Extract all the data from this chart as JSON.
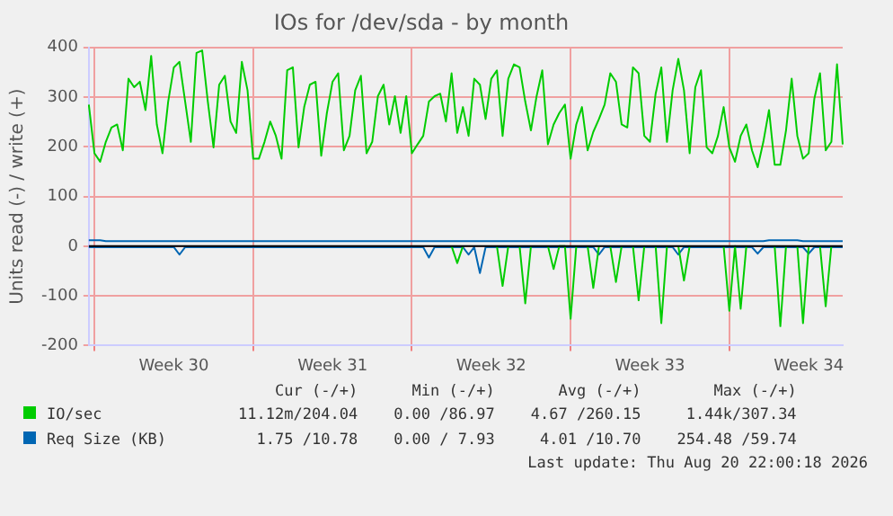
{
  "chart_data": {
    "type": "line",
    "title": "IOs for /dev/sda - by month",
    "ylabel": "Units read (-) / write (+)",
    "categories": [
      null,
      null,
      null,
      null,
      null,
      null,
      null,
      null,
      null,
      null,
      null,
      null,
      null,
      null,
      null,
      "Week 30",
      null,
      null,
      null,
      null,
      null,
      null,
      null,
      null,
      null,
      null,
      null,
      null,
      null,
      null,
      null,
      null,
      null,
      null,
      null,
      null,
      null,
      null,
      null,
      null,
      null,
      null,
      null,
      "Week 31",
      null,
      null,
      null,
      null,
      null,
      null,
      null,
      null,
      null,
      null,
      null,
      null,
      null,
      null,
      null,
      null,
      null,
      null,
      null,
      null,
      null,
      null,
      null,
      null,
      null,
      null,
      null,
      "Week 32",
      null,
      null,
      null,
      null,
      null,
      null,
      null,
      null,
      null,
      null,
      null,
      null,
      null,
      null,
      null,
      null,
      null,
      null,
      null,
      null,
      null,
      null,
      null,
      null,
      null,
      null,
      null,
      "Week 33",
      null,
      null,
      null,
      null,
      null,
      null,
      null,
      null,
      null,
      null,
      null,
      null,
      null,
      null,
      null,
      null,
      null,
      null,
      null,
      null,
      null,
      null,
      null,
      null,
      null,
      null,
      null,
      "Week 34",
      null,
      null,
      null,
      null,
      null,
      null
    ],
    "ylim": [
      -200,
      400
    ],
    "yticks": [
      -200,
      -100,
      0,
      100,
      200,
      300,
      400
    ],
    "grid": true,
    "legend": "bottom",
    "ref_lines": [
      {
        "axis": "y",
        "value": 0,
        "color": "#000000"
      }
    ],
    "series": [
      {
        "name": "IO/sec",
        "color": "#00cc00",
        "values": [
          285,
          187,
          170,
          210,
          239,
          245,
          193,
          337,
          320,
          331,
          274,
          383,
          245,
          187,
          291,
          360,
          371,
          291,
          210,
          389,
          394,
          291,
          199,
          325,
          343,
          251,
          228,
          371,
          314,
          176,
          176,
          210,
          251,
          222,
          176,
          354,
          360,
          199,
          280,
          325,
          331,
          182,
          268,
          331,
          348,
          193,
          222,
          314,
          343,
          187,
          210,
          302,
          325,
          245,
          302,
          228,
          302,
          187,
          205,
          222,
          291,
          302,
          307,
          251,
          348,
          228,
          280,
          222,
          337,
          325,
          256,
          337,
          354,
          222,
          337,
          366,
          360,
          291,
          233,
          302,
          354,
          205,
          245,
          268,
          285,
          176,
          245,
          280,
          193,
          230,
          256,
          285,
          348,
          331,
          245,
          239,
          360,
          348,
          222,
          210,
          307,
          360,
          210,
          314,
          377,
          314,
          187,
          320,
          354,
          199,
          187,
          222,
          280,
          199,
          170,
          222,
          245,
          193,
          159,
          210,
          274,
          164,
          164,
          233,
          337,
          222,
          176,
          187,
          297,
          348,
          193,
          210,
          366,
          205
        ]
      },
      {
        "color": "#00cc00",
        "values": [
          null,
          null,
          null,
          null,
          null,
          null,
          null,
          null,
          null,
          null,
          null,
          null,
          null,
          null,
          null,
          null,
          null,
          null,
          null,
          null,
          null,
          null,
          null,
          null,
          null,
          null,
          null,
          null,
          null,
          null,
          null,
          null,
          null,
          null,
          null,
          null,
          null,
          null,
          null,
          null,
          null,
          null,
          null,
          null,
          null,
          null,
          null,
          null,
          null,
          null,
          null,
          null,
          null,
          null,
          null,
          null,
          null,
          null,
          null,
          null,
          null,
          null,
          null,
          null,
          0,
          -34,
          0,
          null,
          null,
          null,
          null,
          null,
          0,
          -80,
          0,
          null,
          0,
          -115,
          0,
          null,
          null,
          0,
          -46,
          0,
          0,
          -146,
          0,
          null,
          0,
          -84,
          0,
          null,
          0,
          -72,
          0,
          null,
          0,
          -109,
          0,
          null,
          0,
          -155,
          0,
          null,
          0,
          -69,
          0,
          null,
          null,
          null,
          null,
          null,
          0,
          -130,
          0,
          -126,
          0,
          null,
          null,
          null,
          null,
          0,
          -161,
          0,
          null,
          0,
          -155,
          0,
          null,
          0,
          -121,
          0,
          null,
          null
        ]
      },
      {
        "name": "Req Size (KB)",
        "color": "#0066b3",
        "values": [
          12,
          12,
          12,
          10,
          10,
          10,
          10,
          10,
          10,
          10,
          10,
          10,
          10,
          10,
          10,
          10,
          10,
          10,
          10,
          10,
          10,
          10,
          10,
          10,
          10,
          10,
          10,
          10,
          10,
          10,
          10,
          10,
          10,
          10,
          10,
          10,
          10,
          10,
          10,
          10,
          10,
          10,
          10,
          10,
          10,
          10,
          10,
          10,
          10,
          10,
          10,
          10,
          10,
          10,
          10,
          10,
          10,
          10,
          10,
          10,
          10,
          10,
          10,
          10,
          10,
          10,
          10,
          10,
          10,
          10,
          10,
          10,
          10,
          10,
          10,
          10,
          10,
          10,
          10,
          10,
          10,
          10,
          10,
          10,
          10,
          10,
          10,
          10,
          10,
          10,
          10,
          10,
          10,
          10,
          10,
          10,
          10,
          10,
          10,
          10,
          10,
          10,
          10,
          10,
          10,
          10,
          10,
          10,
          10,
          10,
          10,
          10,
          10,
          10,
          10,
          10,
          10,
          10,
          10,
          10,
          12,
          12,
          12,
          12,
          12,
          12,
          10,
          10,
          10,
          10,
          10,
          10,
          10,
          10
        ]
      },
      {
        "color": "#0066b3",
        "values": [
          -2,
          -2,
          -2,
          -2,
          -2,
          -2,
          -2,
          -2,
          -2,
          -2,
          -2,
          -2,
          -2,
          -2,
          -2,
          -2,
          -17,
          -2,
          -2,
          -2,
          -2,
          -2,
          -2,
          -2,
          -2,
          -2,
          -2,
          -2,
          -2,
          -2,
          -2,
          -2,
          -2,
          -2,
          -2,
          -2,
          -2,
          -2,
          -2,
          -2,
          -2,
          -2,
          -2,
          -2,
          -2,
          -2,
          -2,
          -2,
          -2,
          -2,
          -2,
          -2,
          -2,
          -2,
          -2,
          -2,
          -2,
          -2,
          -2,
          -2,
          -23,
          -2,
          -2,
          -2,
          -2,
          -2,
          -2,
          -17,
          -2,
          -54,
          -2,
          -2,
          -2,
          -2,
          -2,
          -2,
          -2,
          -2,
          -2,
          -2,
          -2,
          -2,
          -2,
          -2,
          -2,
          -2,
          -2,
          -2,
          -2,
          -2,
          -17,
          -2,
          -2,
          -2,
          -2,
          -2,
          -2,
          -2,
          -2,
          -2,
          -2,
          -2,
          -2,
          -2,
          -17,
          -2,
          -2,
          -2,
          -2,
          -2,
          -2,
          -2,
          -2,
          -2,
          -2,
          -2,
          -2,
          -2,
          -15,
          -2,
          -2,
          -2,
          -2,
          -2,
          -2,
          -2,
          -2,
          -15,
          -2,
          -2,
          -2,
          -2,
          -2,
          -2
        ]
      }
    ],
    "annotations": [
      "Cur (-/+)",
      "Min (-/+)",
      "Avg (-/+)",
      "Max (-/+)",
      "11.12m/204.04",
      "0.00 /86.97",
      "4.67 /260.15",
      "1.44k/307.34",
      "1.75 /10.78",
      "0.00 / 7.93",
      "4.01 /10.70",
      "254.48 /59.74",
      "Last update: Thu Aug 20 22:00:18 2026"
    ]
  }
}
